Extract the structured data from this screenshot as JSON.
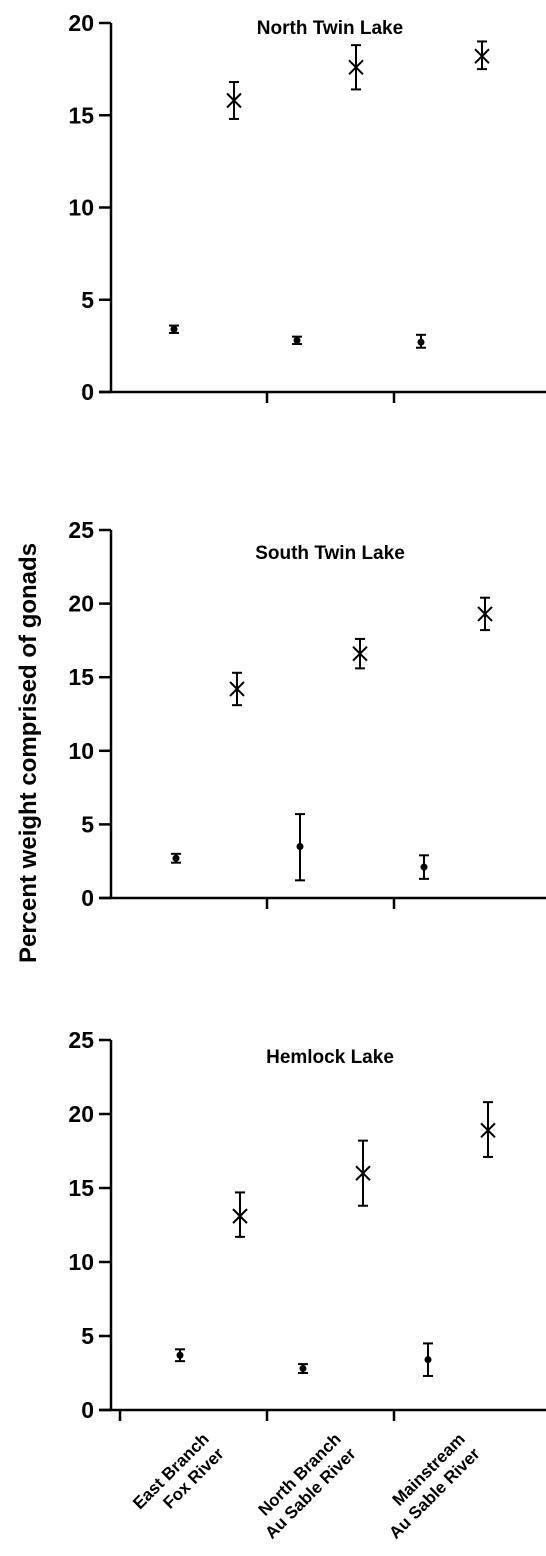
{
  "figure": {
    "ylabel": "Percent weight comprised of gonads",
    "category_labels": [
      [
        "East Branch",
        "Fox River"
      ],
      [
        "North Branch",
        "Au Sable River"
      ],
      [
        "Mainstream",
        "Au Sable River"
      ]
    ]
  },
  "chart_data": [
    {
      "type": "scatter",
      "title": "North Twin Lake",
      "xlabel": "",
      "ylabel": "Percent weight comprised of gonads",
      "ylim": [
        0,
        20
      ],
      "yticks": [
        0,
        5,
        10,
        15,
        20
      ],
      "categories": [
        "East Branch Fox River",
        "North Branch Au Sable River",
        "Mainstream Au Sable River"
      ],
      "series": [
        {
          "marker": "dot",
          "values": [
            3.4,
            2.8,
            2.7
          ],
          "err_low": [
            3.2,
            2.6,
            2.4
          ],
          "err_high": [
            3.6,
            3.0,
            3.1
          ]
        },
        {
          "marker": "x",
          "values": [
            15.8,
            17.6,
            18.2
          ],
          "err_low": [
            14.8,
            16.4,
            17.5
          ],
          "err_high": [
            16.8,
            18.8,
            19.0
          ]
        }
      ]
    },
    {
      "type": "scatter",
      "title": "South Twin Lake",
      "xlabel": "",
      "ylabel": "Percent weight comprised of gonads",
      "ylim": [
        0,
        25
      ],
      "yticks": [
        0,
        5,
        10,
        15,
        20,
        25
      ],
      "categories": [
        "East Branch Fox River",
        "North Branch Au Sable River",
        "Mainstream Au Sable River"
      ],
      "series": [
        {
          "marker": "dot",
          "values": [
            2.7,
            3.5,
            2.1
          ],
          "err_low": [
            2.4,
            1.2,
            1.3
          ],
          "err_high": [
            3.0,
            5.7,
            2.9
          ]
        },
        {
          "marker": "x",
          "values": [
            14.2,
            16.6,
            19.3
          ],
          "err_low": [
            13.1,
            15.6,
            18.2
          ],
          "err_high": [
            15.3,
            17.6,
            20.4
          ]
        }
      ]
    },
    {
      "type": "scatter",
      "title": "Hemlock Lake",
      "xlabel": "",
      "ylabel": "Percent weight comprised of gonads",
      "ylim": [
        0,
        25
      ],
      "yticks": [
        0,
        5,
        10,
        15,
        20,
        25
      ],
      "categories": [
        "East Branch Fox River",
        "North Branch Au Sable River",
        "Mainstream Au Sable River"
      ],
      "series": [
        {
          "marker": "dot",
          "values": [
            3.7,
            2.8,
            3.4
          ],
          "err_low": [
            3.3,
            2.5,
            2.3
          ],
          "err_high": [
            4.1,
            3.1,
            4.5
          ]
        },
        {
          "marker": "x",
          "values": [
            13.1,
            16.0,
            18.9
          ],
          "err_low": [
            11.7,
            13.8,
            17.1
          ],
          "err_high": [
            14.7,
            18.2,
            20.8
          ]
        }
      ]
    }
  ]
}
